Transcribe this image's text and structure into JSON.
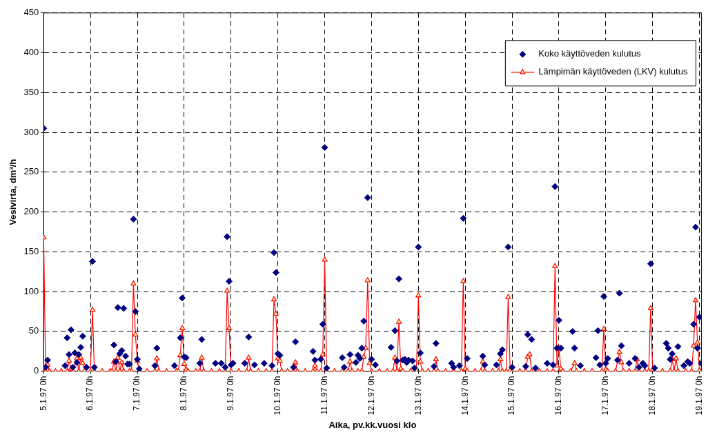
{
  "chart_data": {
    "type": "scatter",
    "xlabel": "Aika, pv.kk.vuosi klo",
    "ylabel": "Vesivirta, dm³/h",
    "xlim": [
      "1997-01-05T00:00",
      "1997-01-19T01:00"
    ],
    "xticks": [
      {
        "value": "1997-01-05T00:00",
        "label": "5.1.97 0h"
      },
      {
        "value": "1997-01-06T00:00",
        "label": "6.1.97 0h"
      },
      {
        "value": "1997-01-07T00:00",
        "label": "7.1.97 0h"
      },
      {
        "value": "1997-01-08T00:00",
        "label": "8.1.97 0h"
      },
      {
        "value": "1997-01-09T00:00",
        "label": "9.1.97 0h"
      },
      {
        "value": "1997-01-10T00:00",
        "label": "10.1.97 0h"
      },
      {
        "value": "1997-01-11T00:00",
        "label": "11.1.97 0h"
      },
      {
        "value": "1997-01-12T00:00",
        "label": "12.1.97 0h"
      },
      {
        "value": "1997-01-13T00:00",
        "label": "13.1.97 0h"
      },
      {
        "value": "1997-01-14T00:00",
        "label": "14.1.97 0h"
      },
      {
        "value": "1997-01-15T00:00",
        "label": "15.1.97 0h"
      },
      {
        "value": "1997-01-16T00:00",
        "label": "16.1.97 0h"
      },
      {
        "value": "1997-01-17T00:00",
        "label": "17.1.97 0h"
      },
      {
        "value": "1997-01-18T00:00",
        "label": "18.1.97 0h"
      },
      {
        "value": "1997-01-19T00:00",
        "label": "19.1.97 0h"
      }
    ],
    "ylim": [
      0,
      450
    ],
    "yticks": [
      0,
      50,
      100,
      150,
      200,
      250,
      300,
      350,
      400,
      450
    ],
    "grid": true,
    "legend": "top right",
    "series": [
      {
        "name": "Koko käyttöveden kulutus",
        "marker": "diamond",
        "color": "#000080",
        "x": [
          "1997-01-05T00:00",
          "1997-01-05T01:00",
          "1997-01-05T02:00",
          "1997-01-05T11:00",
          "1997-01-05T12:00",
          "1997-01-05T13:00",
          "1997-01-05T14:00",
          "1997-01-05T15:00",
          "1997-01-05T16:00",
          "1997-01-05T17:00",
          "1997-01-05T18:00",
          "1997-01-05T19:00",
          "1997-01-05T20:00",
          "1997-01-05T22:00",
          "1997-01-06T01:00",
          "1997-01-06T02:00",
          "1997-01-06T12:00",
          "1997-01-06T13:00",
          "1997-01-06T14:00",
          "1997-01-06T15:00",
          "1997-01-06T16:00",
          "1997-01-06T17:00",
          "1997-01-06T18:00",
          "1997-01-06T19:00",
          "1997-01-06T20:00",
          "1997-01-06T22:00",
          "1997-01-06T23:00",
          "1997-01-07T00:00",
          "1997-01-07T01:00",
          "1997-01-07T09:00",
          "1997-01-07T10:00",
          "1997-01-07T19:00",
          "1997-01-07T22:00",
          "1997-01-07T23:00",
          "1997-01-08T00:00",
          "1997-01-08T01:00",
          "1997-01-08T08:00",
          "1997-01-08T09:00",
          "1997-01-08T16:00",
          "1997-01-08T19:00",
          "1997-01-08T21:00",
          "1997-01-08T22:00",
          "1997-01-08T23:00",
          "1997-01-09T00:00",
          "1997-01-09T01:00",
          "1997-01-09T07:00",
          "1997-01-09T09:00",
          "1997-01-09T12:00",
          "1997-01-09T17:00",
          "1997-01-09T21:00",
          "1997-01-09T22:00",
          "1997-01-09T23:00",
          "1997-01-10T00:00",
          "1997-01-10T01:00",
          "1997-01-10T08:00",
          "1997-01-10T09:00",
          "1997-01-10T18:00",
          "1997-01-10T19:00",
          "1997-01-10T22:00",
          "1997-01-10T23:00",
          "1997-01-11T00:00",
          "1997-01-11T01:00",
          "1997-01-11T09:00",
          "1997-01-11T10:00",
          "1997-01-11T13:00",
          "1997-01-11T16:00",
          "1997-01-11T17:00",
          "1997-01-11T18:00",
          "1997-01-11T19:00",
          "1997-01-11T20:00",
          "1997-01-11T22:00",
          "1997-01-12T00:00",
          "1997-01-12T02:00",
          "1997-01-12T10:00",
          "1997-01-12T12:00",
          "1997-01-12T13:00",
          "1997-01-12T14:00",
          "1997-01-12T16:00",
          "1997-01-12T17:00",
          "1997-01-12T18:00",
          "1997-01-12T19:00",
          "1997-01-12T21:00",
          "1997-01-12T22:00",
          "1997-01-13T00:00",
          "1997-01-13T01:00",
          "1997-01-13T08:00",
          "1997-01-13T09:00",
          "1997-01-13T17:00",
          "1997-01-13T18:00",
          "1997-01-13T21:00",
          "1997-01-13T23:00",
          "1997-01-14T01:00",
          "1997-01-14T09:00",
          "1997-01-14T10:00",
          "1997-01-14T16:00",
          "1997-01-14T18:00",
          "1997-01-14T19:00",
          "1997-01-14T22:00",
          "1997-01-15T00:00",
          "1997-01-15T07:00",
          "1997-01-15T08:00",
          "1997-01-15T10:00",
          "1997-01-15T12:00",
          "1997-01-15T18:00",
          "1997-01-15T21:00",
          "1997-01-15T22:00",
          "1997-01-15T23:00",
          "1997-01-16T00:00",
          "1997-01-16T01:00",
          "1997-01-16T07:00",
          "1997-01-16T08:00",
          "1997-01-16T11:00",
          "1997-01-16T19:00",
          "1997-01-16T20:00",
          "1997-01-16T21:00",
          "1997-01-16T23:00",
          "1997-01-17T00:00",
          "1997-01-17T01:00",
          "1997-01-17T06:00",
          "1997-01-17T07:00",
          "1997-01-17T08:00",
          "1997-01-17T12:00",
          "1997-01-17T15:00",
          "1997-01-17T17:00",
          "1997-01-17T19:00",
          "1997-01-17T20:00",
          "1997-01-17T23:00",
          "1997-01-18T01:00",
          "1997-01-18T07:00",
          "1997-01-18T08:00",
          "1997-01-18T09:00",
          "1997-01-18T10:00",
          "1997-01-18T13:00",
          "1997-01-18T16:00",
          "1997-01-18T18:00",
          "1997-01-18T19:00",
          "1997-01-18T21:00",
          "1997-01-18T22:00",
          "1997-01-18T23:00",
          "1997-01-19T00:00",
          "1997-01-19T01:00"
        ],
        "values": [
          305,
          5,
          14,
          7,
          42,
          21,
          52,
          5,
          23,
          11,
          21,
          30,
          44,
          5,
          138,
          5,
          33,
          12,
          80,
          22,
          26,
          79,
          19,
          9,
          9,
          191,
          75,
          15,
          3,
          7,
          29,
          7,
          42,
          92,
          18,
          17,
          10,
          40,
          10,
          10,
          5,
          169,
          113,
          8,
          10,
          10,
          43,
          8,
          10,
          7,
          149,
          124,
          22,
          20,
          5,
          37,
          25,
          14,
          15,
          59,
          281,
          4,
          17,
          5,
          21,
          11,
          20,
          16,
          29,
          63,
          218,
          15,
          8,
          30,
          51,
          13,
          116,
          14,
          15,
          11,
          14,
          13,
          4,
          156,
          23,
          6,
          35,
          10,
          5,
          7,
          192,
          16,
          19,
          8,
          8,
          22,
          27,
          156,
          5,
          6,
          46,
          40,
          4,
          10,
          8,
          232,
          29,
          64,
          29,
          50,
          29,
          7,
          17,
          51,
          8,
          94,
          10,
          16,
          14,
          98,
          32,
          10,
          16,
          5,
          10,
          7,
          135,
          4,
          35,
          29,
          15,
          22,
          31,
          7,
          12,
          10,
          59,
          181,
          29,
          68,
          10
        ]
      },
      {
        "name": "Lämpimän käyttöveden (LKV) kulutus",
        "type": "line",
        "marker": "triangle",
        "line_style": "solid",
        "color": "#ff0000",
        "x": [
          "1997-01-05T00:00",
          "1997-01-05T01:00",
          "1997-01-05T02:00",
          "1997-01-05T03:00",
          "1997-01-05T06:00",
          "1997-01-05T09:00",
          "1997-01-05T12:00",
          "1997-01-05T13:00",
          "1997-01-05T14:00",
          "1997-01-05T15:00",
          "1997-01-05T17:00",
          "1997-01-05T18:00",
          "1997-01-05T19:00",
          "1997-01-05T20:00",
          "1997-01-05T21:00",
          "1997-01-06T00:00",
          "1997-01-06T01:00",
          "1997-01-06T02:00",
          "1997-01-06T06:00",
          "1997-01-06T10:00",
          "1997-01-06T11:00",
          "1997-01-06T12:00",
          "1997-01-06T13:00",
          "1997-01-06T14:00",
          "1997-01-06T15:00",
          "1997-01-06T16:00",
          "1997-01-06T17:00",
          "1997-01-06T20:00",
          "1997-01-06T21:00",
          "1997-01-06T22:00",
          "1997-01-06T23:00",
          "1997-01-07T00:00",
          "1997-01-07T01:00",
          "1997-01-07T05:00",
          "1997-01-07T09:00",
          "1997-01-07T10:00",
          "1997-01-07T11:00",
          "1997-01-07T15:00",
          "1997-01-07T20:00",
          "1997-01-07T21:00",
          "1997-01-07T22:00",
          "1997-01-07T23:00",
          "1997-01-08T00:00",
          "1997-01-08T01:00",
          "1997-01-08T02:00",
          "1997-01-08T06:00",
          "1997-01-08T08:00",
          "1997-01-08T09:00",
          "1997-01-08T10:00",
          "1997-01-08T14:00",
          "1997-01-08T18:00",
          "1997-01-08T21:00",
          "1997-01-08T22:00",
          "1997-01-08T23:00",
          "1997-01-09T00:00",
          "1997-01-09T04:00",
          "1997-01-09T08:00",
          "1997-01-09T09:00",
          "1997-01-09T10:00",
          "1997-01-09T14:00",
          "1997-01-09T18:00",
          "1997-01-09T21:00",
          "1997-01-09T22:00",
          "1997-01-09T23:00",
          "1997-01-10T00:00",
          "1997-01-10T01:00",
          "1997-01-10T02:00",
          "1997-01-10T05:00",
          "1997-01-10T08:00",
          "1997-01-10T09:00",
          "1997-01-10T10:00",
          "1997-01-10T14:00",
          "1997-01-10T18:00",
          "1997-01-10T19:00",
          "1997-01-10T20:00",
          "1997-01-10T22:00",
          "1997-01-10T23:00",
          "1997-01-11T00:00",
          "1997-01-11T01:00",
          "1997-01-11T05:00",
          "1997-01-11T09:00",
          "1997-01-11T12:00",
          "1997-01-11T13:00",
          "1997-01-11T14:00",
          "1997-01-11T17:00",
          "1997-01-11T19:00",
          "1997-01-11T20:00",
          "1997-01-11T21:00",
          "1997-01-11T22:00",
          "1997-01-11T23:00",
          "1997-01-12T00:00",
          "1997-01-12T04:00",
          "1997-01-12T08:00",
          "1997-01-12T11:00",
          "1997-01-12T12:00",
          "1997-01-12T13:00",
          "1997-01-12T14:00",
          "1997-01-12T15:00",
          "1997-01-12T16:00",
          "1997-01-12T20:00",
          "1997-01-12T23:00",
          "1997-01-13T00:00",
          "1997-01-13T01:00",
          "1997-01-13T02:00",
          "1997-01-13T05:00",
          "1997-01-13T08:00",
          "1997-01-13T09:00",
          "1997-01-13T10:00",
          "1997-01-13T14:00",
          "1997-01-13T18:00",
          "1997-01-13T22:00",
          "1997-01-13T23:00",
          "1997-01-14T00:00",
          "1997-01-14T01:00",
          "1997-01-14T05:00",
          "1997-01-14T08:00",
          "1997-01-14T09:00",
          "1997-01-14T10:00",
          "1997-01-14T14:00",
          "1997-01-14T17:00",
          "1997-01-14T18:00",
          "1997-01-14T19:00",
          "1997-01-14T21:00",
          "1997-01-14T22:00",
          "1997-01-14T23:00",
          "1997-01-15T00:00",
          "1997-01-15T04:00",
          "1997-01-15T07:00",
          "1997-01-15T08:00",
          "1997-01-15T09:00",
          "1997-01-15T10:00",
          "1997-01-15T14:00",
          "1997-01-15T18:00",
          "1997-01-15T21:00",
          "1997-01-15T22:00",
          "1997-01-15T23:00",
          "1997-01-16T00:00",
          "1997-01-16T01:00",
          "1997-01-16T02:00",
          "1997-01-16T06:00",
          "1997-01-16T08:00",
          "1997-01-16T09:00",
          "1997-01-16T13:00",
          "1997-01-16T17:00",
          "1997-01-16T22:00",
          "1997-01-16T23:00",
          "1997-01-17T00:00",
          "1997-01-17T01:00",
          "1997-01-17T05:00",
          "1997-01-17T07:00",
          "1997-01-17T08:00",
          "1997-01-17T09:00",
          "1997-01-17T12:00",
          "1997-01-17T15:00",
          "1997-01-17T16:00",
          "1997-01-17T17:00",
          "1997-01-17T20:00",
          "1997-01-17T22:00",
          "1997-01-17T23:00",
          "1997-01-18T00:00",
          "1997-01-18T01:00",
          "1997-01-18T05:00",
          "1997-01-18T09:00",
          "1997-01-18T10:00",
          "1997-01-18T11:00",
          "1997-01-18T12:00",
          "1997-01-18T13:00",
          "1997-01-18T17:00",
          "1997-01-18T20:00",
          "1997-01-18T21:00",
          "1997-01-18T22:00",
          "1997-01-18T23:00",
          "1997-01-19T00:00"
        ],
        "values": [
          168,
          0,
          8,
          0,
          0,
          0,
          0,
          13,
          3,
          0,
          16,
          0,
          17,
          10,
          0,
          0,
          77,
          0,
          0,
          0,
          0,
          12,
          0,
          17,
          0,
          11,
          0,
          0,
          0,
          110,
          46,
          13,
          0,
          0,
          0,
          16,
          0,
          0,
          0,
          0,
          20,
          54,
          9,
          2,
          0,
          0,
          0,
          17,
          0,
          0,
          0,
          0,
          101,
          54,
          0,
          0,
          0,
          17,
          0,
          0,
          0,
          0,
          90,
          72,
          16,
          13,
          0,
          0,
          0,
          11,
          0,
          0,
          0,
          7,
          0,
          0,
          21,
          140,
          0,
          0,
          0,
          0,
          12,
          0,
          0,
          0,
          18,
          29,
          114,
          10,
          0,
          0,
          0,
          0,
          17,
          0,
          62,
          3,
          0,
          0,
          0,
          95,
          12,
          0,
          0,
          0,
          15,
          0,
          0,
          0,
          0,
          113,
          3,
          0,
          0,
          0,
          12,
          0,
          0,
          0,
          15,
          0,
          0,
          93,
          1,
          0,
          0,
          0,
          18,
          21,
          0,
          0,
          0,
          0,
          132,
          7,
          29,
          3,
          0,
          0,
          10,
          0,
          0,
          0,
          0,
          53,
          2,
          0,
          0,
          24,
          11,
          0,
          0,
          0,
          15,
          0,
          0,
          0,
          79,
          2,
          0,
          0,
          0,
          15,
          0,
          16,
          0,
          0,
          0,
          32,
          89,
          36,
          1
        ]
      }
    ]
  }
}
